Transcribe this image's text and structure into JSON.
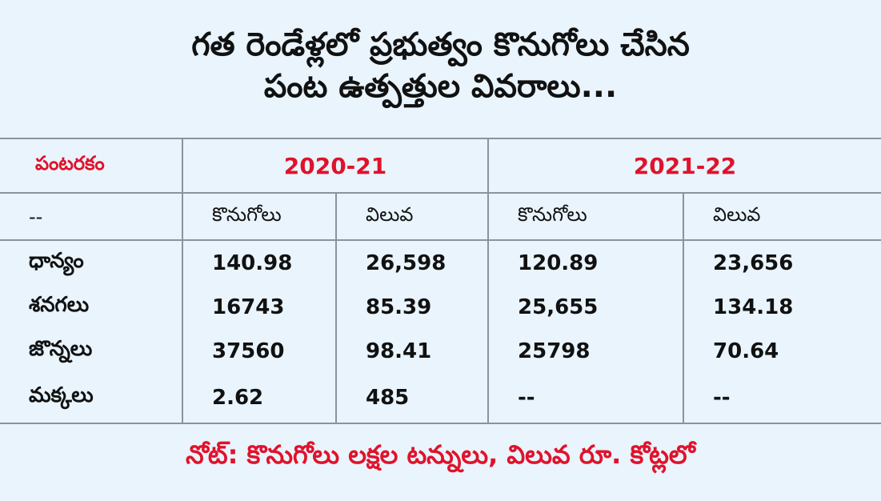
{
  "title": {
    "line1": "గత రెండేళ్లలో ప్రభుత్వం కొనుగోలు చేసిన",
    "line2": "పంట ఉత్పత్తుల వివరాలు..."
  },
  "table": {
    "crop_type_label": "పంటరకం",
    "years": [
      "2020-21",
      "2021-22"
    ],
    "sub_headers": {
      "first": "--",
      "purchase": "కొనుగోలు",
      "value": "విలువ"
    },
    "rows": [
      {
        "crop": "ధాన్యం",
        "p2020": "140.98",
        "v2020": "26,598",
        "p2021": "120.89",
        "v2021": "23,656"
      },
      {
        "crop": "శనగలు",
        "p2020": "16743",
        "v2020": "85.39",
        "p2021": "25,655",
        "v2021": "134.18"
      },
      {
        "crop": "జొన్నలు",
        "p2020": "37560",
        "v2020": "98.41",
        "p2021": "25798",
        "v2021": "70.64"
      },
      {
        "crop": "మక్కలు",
        "p2020": "2.62",
        "v2020": "485",
        "p2021": "--",
        "v2021": "--"
      }
    ]
  },
  "note": "నోట్: కొనుగోలు లక్షల టన్నులు, విలువ రూ. కోట్లలో",
  "colors": {
    "accent_red": "#e0122b",
    "background": "#e9f4fc",
    "grid": "#8a949c"
  }
}
